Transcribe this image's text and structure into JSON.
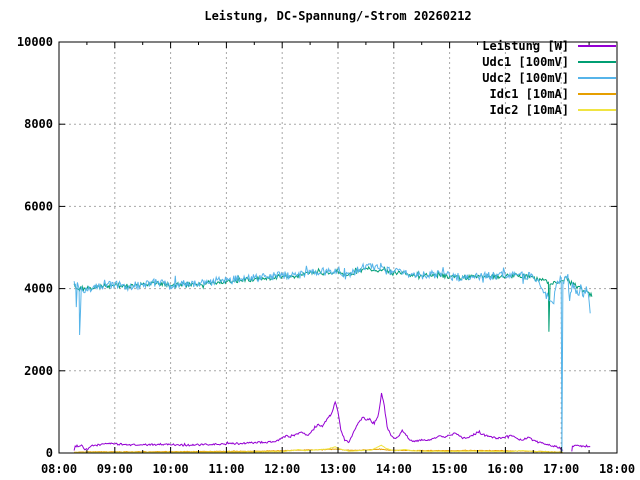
{
  "title": "Leistung, DC-Spannung/-Strom 20260212",
  "colors": {
    "background": "#ffffff",
    "border": "#000000",
    "grid": "#a8a8a8",
    "text": "#000000",
    "leistung": "#9400d3",
    "udc1": "#009e73",
    "udc2": "#56b4e9",
    "idc1": "#e69f00",
    "idc2": "#f0e442"
  },
  "chart_data": {
    "type": "line",
    "title": "Leistung, DC-Spannung/-Strom 20260212",
    "grid": true,
    "legend_position": "top-right-inside",
    "x_axis": {
      "unit": "time",
      "range_hours": [
        8,
        18
      ],
      "tick_labels": [
        "08:00",
        "09:00",
        "10:00",
        "11:00",
        "12:00",
        "13:00",
        "14:00",
        "15:00",
        "16:00",
        "17:00",
        "18:00"
      ],
      "minor_tick_minutes": 30
    },
    "y_axis": {
      "range": [
        0,
        10000
      ],
      "tick_labels": [
        "0",
        "2000",
        "4000",
        "6000",
        "8000",
        "10000"
      ]
    },
    "series": [
      {
        "name": "Leistung [W]",
        "color": "#9400d3",
        "noise_amplitude": 22,
        "segments": [
          [
            [
              8.27,
              60
            ],
            [
              8.29,
              170
            ],
            [
              8.42,
              175
            ],
            [
              8.46,
              80
            ],
            [
              8.52,
              90
            ],
            [
              8.58,
              175
            ],
            [
              8.75,
              205
            ],
            [
              8.9,
              240
            ],
            [
              9.0,
              225
            ],
            [
              9.15,
              205
            ],
            [
              9.3,
              200
            ],
            [
              9.5,
              195
            ],
            [
              9.7,
              205
            ],
            [
              9.9,
              215
            ],
            [
              10.1,
              200
            ],
            [
              10.3,
              190
            ],
            [
              10.5,
              200
            ],
            [
              10.7,
              205
            ],
            [
              10.9,
              215
            ],
            [
              11.1,
              225
            ],
            [
              11.3,
              235
            ],
            [
              11.5,
              255
            ],
            [
              11.7,
              260
            ],
            [
              11.85,
              270
            ],
            [
              12.0,
              360
            ],
            [
              12.08,
              430
            ],
            [
              12.15,
              380
            ],
            [
              12.25,
              460
            ],
            [
              12.35,
              510
            ],
            [
              12.45,
              430
            ],
            [
              12.55,
              560
            ],
            [
              12.65,
              700
            ],
            [
              12.72,
              640
            ],
            [
              12.8,
              820
            ],
            [
              12.88,
              950
            ],
            [
              12.95,
              1240
            ],
            [
              13.0,
              1000
            ],
            [
              13.05,
              560
            ],
            [
              13.12,
              300
            ],
            [
              13.2,
              270
            ],
            [
              13.3,
              560
            ],
            [
              13.38,
              760
            ],
            [
              13.45,
              870
            ],
            [
              13.5,
              800
            ],
            [
              13.57,
              840
            ],
            [
              13.62,
              720
            ],
            [
              13.68,
              790
            ],
            [
              13.73,
              980
            ],
            [
              13.78,
              1460
            ],
            [
              13.83,
              1150
            ],
            [
              13.88,
              640
            ],
            [
              13.95,
              420
            ],
            [
              14.02,
              360
            ],
            [
              14.1,
              420
            ],
            [
              14.15,
              560
            ],
            [
              14.22,
              430
            ],
            [
              14.3,
              310
            ],
            [
              14.4,
              285
            ],
            [
              14.5,
              330
            ],
            [
              14.6,
              305
            ],
            [
              14.7,
              355
            ],
            [
              14.8,
              410
            ],
            [
              14.9,
              385
            ],
            [
              15.0,
              430
            ],
            [
              15.1,
              485
            ],
            [
              15.2,
              410
            ],
            [
              15.3,
              360
            ],
            [
              15.4,
              430
            ],
            [
              15.5,
              505
            ],
            [
              15.6,
              460
            ],
            [
              15.7,
              410
            ],
            [
              15.85,
              360
            ],
            [
              16.0,
              390
            ],
            [
              16.1,
              430
            ],
            [
              16.2,
              360
            ],
            [
              16.3,
              310
            ],
            [
              16.4,
              385
            ],
            [
              16.5,
              310
            ],
            [
              16.6,
              260
            ],
            [
              16.7,
              215
            ],
            [
              16.8,
              190
            ],
            [
              16.9,
              160
            ],
            [
              17.0,
              110
            ],
            [
              17.03,
              60
            ]
          ],
          [
            [
              17.19,
              40
            ],
            [
              17.2,
              165
            ],
            [
              17.32,
              175
            ],
            [
              17.42,
              155
            ],
            [
              17.52,
              145
            ]
          ]
        ]
      },
      {
        "name": "Udc1 [100mV]",
        "color": "#009e73",
        "noise_amplitude": 55,
        "segments": [
          [
            [
              8.27,
              4120
            ],
            [
              8.35,
              3980
            ],
            [
              8.45,
              4020
            ],
            [
              8.6,
              4000
            ],
            [
              8.8,
              4060
            ],
            [
              9.0,
              4080
            ],
            [
              9.25,
              4060
            ],
            [
              9.5,
              4100
            ],
            [
              9.75,
              4140
            ],
            [
              10.0,
              4080
            ],
            [
              10.25,
              4100
            ],
            [
              10.5,
              4120
            ],
            [
              10.75,
              4150
            ],
            [
              11.0,
              4180
            ],
            [
              11.25,
              4200
            ],
            [
              11.5,
              4230
            ],
            [
              11.75,
              4250
            ],
            [
              12.0,
              4300
            ],
            [
              12.25,
              4290
            ],
            [
              12.5,
              4400
            ],
            [
              12.75,
              4380
            ],
            [
              13.0,
              4420
            ],
            [
              13.1,
              4300
            ],
            [
              13.25,
              4350
            ],
            [
              13.5,
              4500
            ],
            [
              13.75,
              4440
            ],
            [
              14.0,
              4390
            ],
            [
              14.25,
              4340
            ],
            [
              14.5,
              4310
            ],
            [
              14.75,
              4330
            ],
            [
              15.0,
              4300
            ],
            [
              15.25,
              4260
            ],
            [
              15.5,
              4290
            ],
            [
              15.75,
              4290
            ],
            [
              16.0,
              4300
            ],
            [
              16.25,
              4330
            ],
            [
              16.5,
              4260
            ],
            [
              16.65,
              4200
            ],
            [
              16.77,
              4150
            ],
            [
              16.78,
              2950
            ],
            [
              16.8,
              4100
            ],
            [
              16.9,
              4150
            ],
            [
              17.0,
              4200
            ],
            [
              17.1,
              4250
            ],
            [
              17.2,
              4100
            ],
            [
              17.3,
              4050
            ],
            [
              17.4,
              3950
            ],
            [
              17.5,
              3900
            ],
            [
              17.55,
              3800
            ]
          ]
        ]
      },
      {
        "name": "Udc2 [100mV]",
        "color": "#56b4e9",
        "noise_amplitude": 100,
        "segments": [
          [
            [
              8.27,
              4180
            ],
            [
              8.3,
              4100
            ],
            [
              8.31,
              3550
            ],
            [
              8.33,
              4150
            ],
            [
              8.36,
              4000
            ],
            [
              8.37,
              2870
            ],
            [
              8.4,
              4050
            ],
            [
              8.5,
              3950
            ],
            [
              8.6,
              4000
            ],
            [
              8.8,
              4080
            ],
            [
              9.0,
              4100
            ],
            [
              9.25,
              4060
            ],
            [
              9.5,
              4110
            ],
            [
              9.75,
              4150
            ],
            [
              10.0,
              4070
            ],
            [
              10.25,
              4110
            ],
            [
              10.5,
              4140
            ],
            [
              10.75,
              4170
            ],
            [
              11.0,
              4200
            ],
            [
              11.25,
              4230
            ],
            [
              11.5,
              4260
            ],
            [
              11.75,
              4280
            ],
            [
              12.0,
              4330
            ],
            [
              12.25,
              4310
            ],
            [
              12.5,
              4420
            ],
            [
              12.75,
              4400
            ],
            [
              13.0,
              4460
            ],
            [
              13.1,
              4290
            ],
            [
              13.25,
              4360
            ],
            [
              13.5,
              4560
            ],
            [
              13.75,
              4460
            ],
            [
              14.0,
              4410
            ],
            [
              14.25,
              4350
            ],
            [
              14.5,
              4320
            ],
            [
              14.75,
              4350
            ],
            [
              15.0,
              4310
            ],
            [
              15.25,
              4270
            ],
            [
              15.5,
              4300
            ],
            [
              15.75,
              4310
            ],
            [
              16.0,
              4310
            ],
            [
              16.25,
              4360
            ],
            [
              16.5,
              4280
            ],
            [
              16.6,
              4180
            ],
            [
              16.7,
              3900
            ],
            [
              16.8,
              3700
            ],
            [
              16.85,
              3650
            ],
            [
              16.9,
              4000
            ],
            [
              16.95,
              4150
            ],
            [
              17.0,
              4250
            ],
            [
              17.013,
              0
            ],
            [
              17.03,
              4150
            ],
            [
              17.08,
              4300
            ],
            [
              17.12,
              4350
            ],
            [
              17.15,
              3700
            ],
            [
              17.2,
              4150
            ],
            [
              17.25,
              4000
            ],
            [
              17.3,
              3850
            ],
            [
              17.35,
              4100
            ],
            [
              17.4,
              3800
            ],
            [
              17.45,
              4050
            ],
            [
              17.5,
              3700
            ],
            [
              17.52,
              3400
            ]
          ]
        ]
      },
      {
        "name": "Idc1 [10mA]",
        "color": "#e69f00",
        "noise_amplitude": 7,
        "segments": [
          [
            [
              8.27,
              18
            ],
            [
              8.5,
              25
            ],
            [
              9.0,
              30
            ],
            [
              9.5,
              30
            ],
            [
              10.0,
              32
            ],
            [
              10.5,
              35
            ],
            [
              11.0,
              38
            ],
            [
              11.5,
              45
            ],
            [
              12.0,
              55
            ],
            [
              12.3,
              70
            ],
            [
              12.5,
              75
            ],
            [
              12.8,
              85
            ],
            [
              12.95,
              95
            ],
            [
              13.1,
              75
            ],
            [
              13.3,
              65
            ],
            [
              13.5,
              75
            ],
            [
              13.78,
              95
            ],
            [
              13.9,
              70
            ],
            [
              14.1,
              65
            ],
            [
              14.3,
              60
            ],
            [
              14.6,
              58
            ],
            [
              15.0,
              55
            ],
            [
              15.4,
              60
            ],
            [
              15.8,
              55
            ],
            [
              16.1,
              50
            ],
            [
              16.4,
              45
            ],
            [
              16.7,
              35
            ],
            [
              17.0,
              22
            ],
            [
              17.03,
              15
            ]
          ]
        ]
      },
      {
        "name": "Idc2 [10mA]",
        "color": "#f0e442",
        "noise_amplitude": 5,
        "segments": [
          [
            [
              8.27,
              8
            ],
            [
              8.5,
              12
            ],
            [
              9.0,
              14
            ],
            [
              9.5,
              14
            ],
            [
              10.0,
              15
            ],
            [
              10.5,
              18
            ],
            [
              11.0,
              20
            ],
            [
              11.5,
              25
            ],
            [
              12.0,
              32
            ],
            [
              12.3,
              85
            ],
            [
              12.4,
              55
            ],
            [
              12.55,
              70
            ],
            [
              12.8,
              95
            ],
            [
              12.95,
              150
            ],
            [
              13.05,
              90
            ],
            [
              13.2,
              45
            ],
            [
              13.4,
              60
            ],
            [
              13.6,
              70
            ],
            [
              13.78,
              190
            ],
            [
              13.85,
              120
            ],
            [
              14.0,
              55
            ],
            [
              14.2,
              85
            ],
            [
              14.35,
              50
            ],
            [
              14.6,
              40
            ],
            [
              15.0,
              36
            ],
            [
              15.4,
              45
            ],
            [
              15.8,
              35
            ],
            [
              16.1,
              32
            ],
            [
              16.3,
              60
            ],
            [
              16.5,
              35
            ],
            [
              16.8,
              25
            ],
            [
              17.0,
              15
            ],
            [
              17.03,
              10
            ]
          ]
        ]
      }
    ]
  }
}
